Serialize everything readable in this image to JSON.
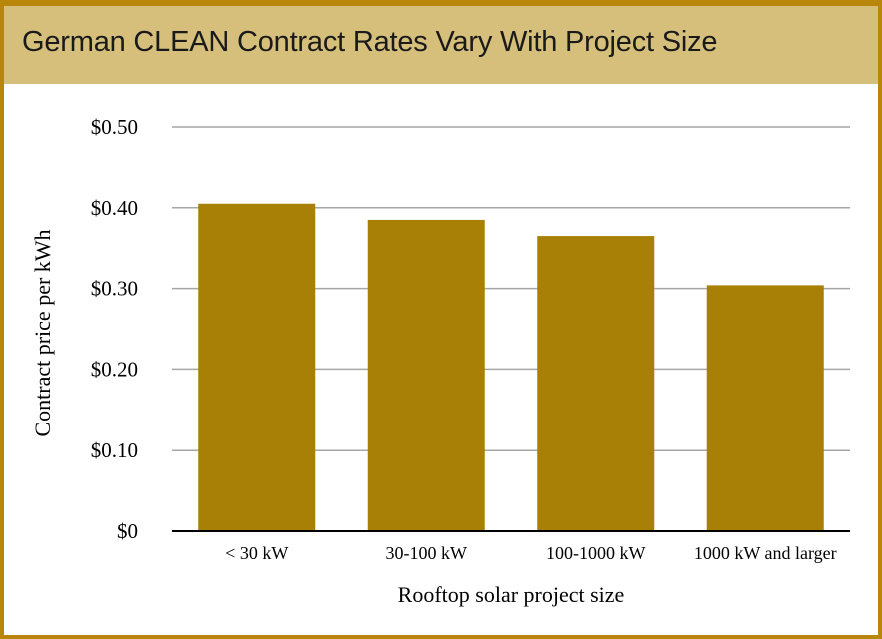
{
  "header": {
    "title": "German CLEAN Contract Rates Vary With Project Size"
  },
  "colors": {
    "frame": "#b8860b",
    "header_bg": "#d5bf7a",
    "bar": "#a78005",
    "grid": "#a6a6a6",
    "axis": "#000000"
  },
  "chart_data": {
    "type": "bar",
    "title": "German CLEAN Contract Rates Vary With Project Size",
    "xlabel": "Rooftop solar project size",
    "ylabel": "Contract price per kWh",
    "categories": [
      "< 30 kW",
      "30-100 kW",
      "100-1000 kW",
      "1000 kW and larger"
    ],
    "values": [
      0.405,
      0.385,
      0.365,
      0.304
    ],
    "ylim": [
      0,
      0.5
    ],
    "yticks": [
      0,
      0.1,
      0.2,
      0.3,
      0.4,
      0.5
    ],
    "ytick_labels": [
      "$0",
      "$0.10",
      "$0.20",
      "$0.30",
      "$0.40",
      "$0.50"
    ],
    "grid": true,
    "legend": "none"
  }
}
